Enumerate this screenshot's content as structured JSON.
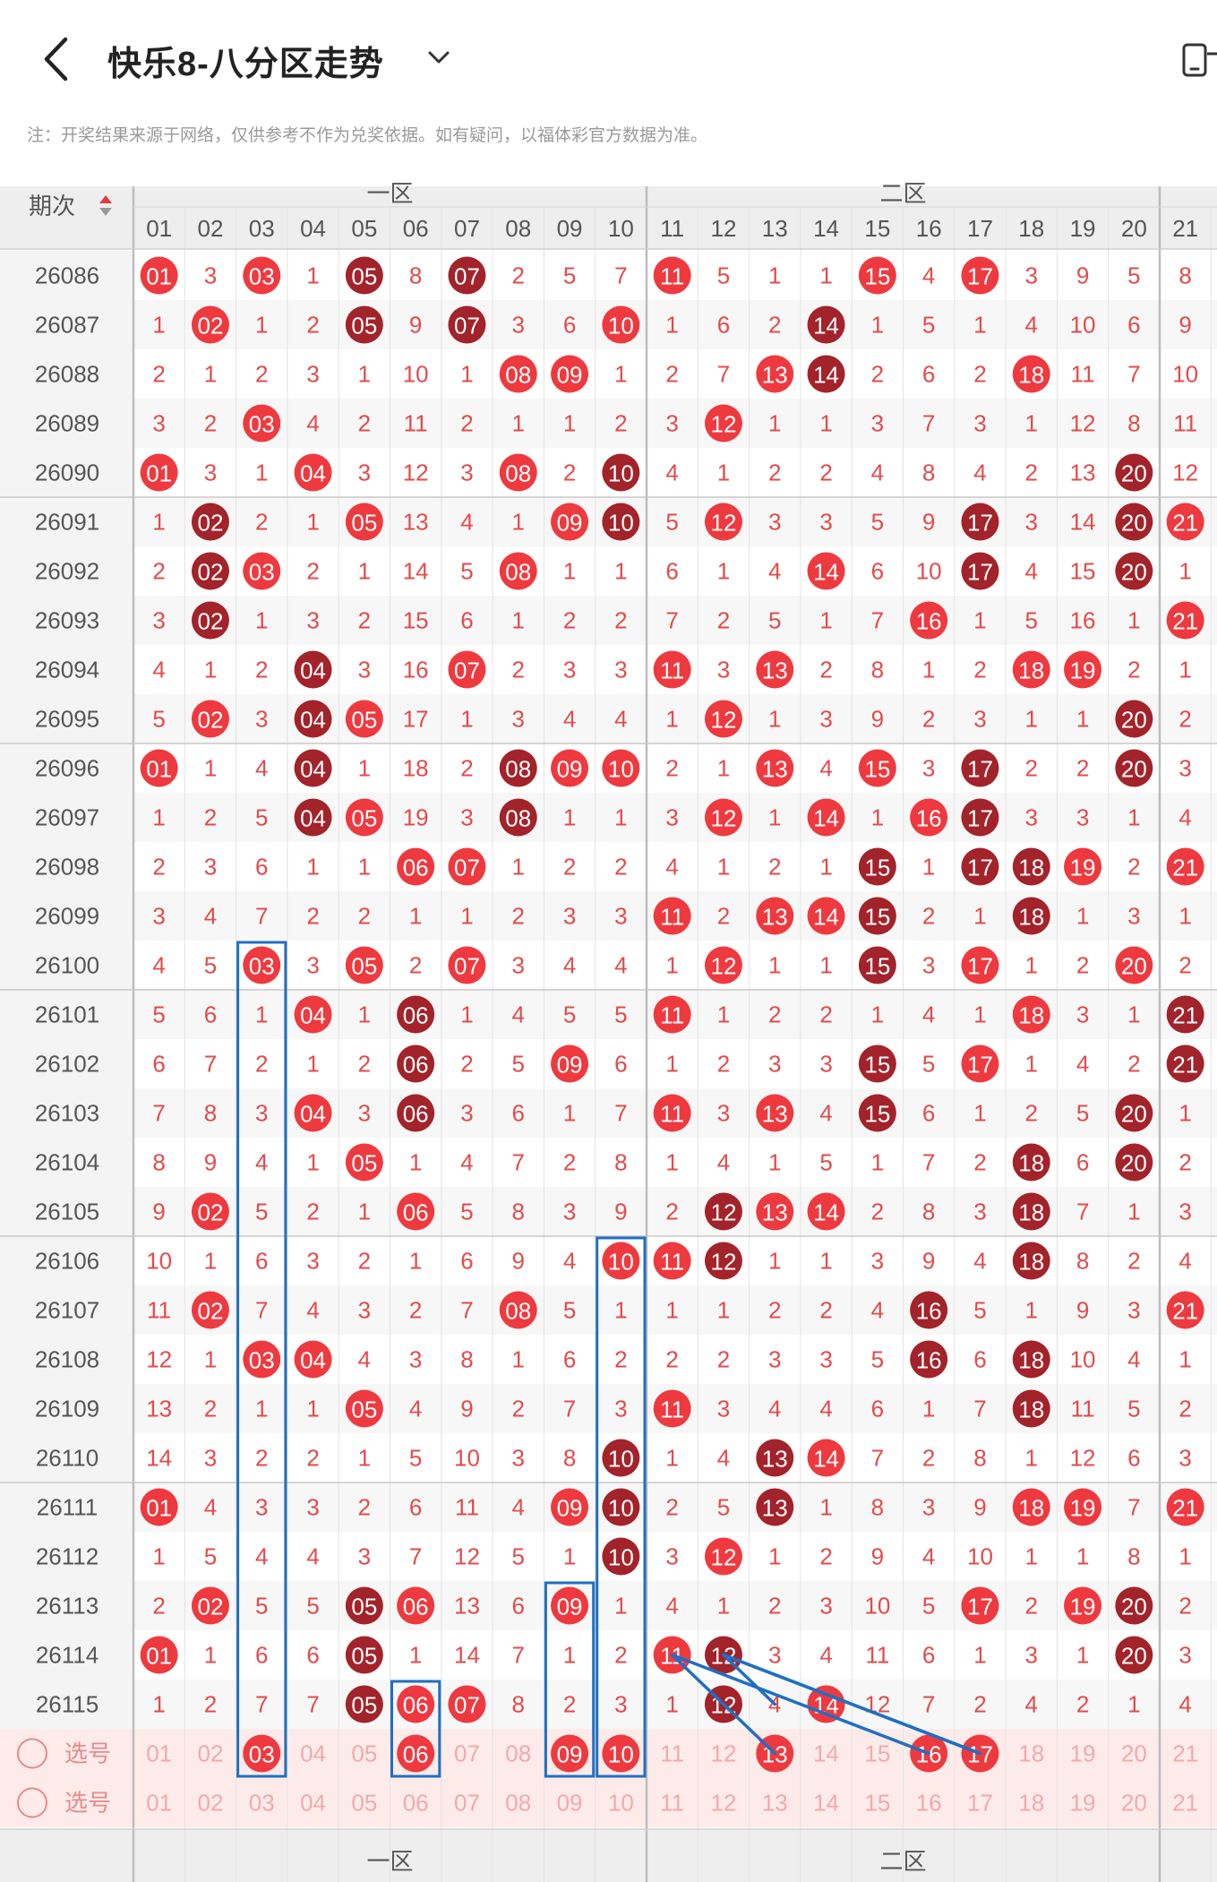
{
  "header": {
    "title": "快乐8-八分区走势",
    "back_icon": "chevron-left-icon",
    "dropdown_icon": "chevron-down-icon",
    "right_icon": "phone-icon"
  },
  "notice": "注：开奖结果来源于网络，仅供参考不作为兑奖依据。如有疑问，以福体彩官方数据为准。",
  "table": {
    "period_header": "期次",
    "zones": [
      "一区",
      "二区"
    ],
    "columns": [
      "01",
      "02",
      "03",
      "04",
      "05",
      "06",
      "07",
      "08",
      "09",
      "10",
      "11",
      "12",
      "13",
      "14",
      "15",
      "16",
      "17",
      "18",
      "19",
      "20",
      "21"
    ],
    "rows": [
      {
        "period": "26086",
        "cells": [
          "01",
          "3",
          "03",
          "1",
          "05",
          "8",
          "07",
          "2",
          "5",
          "7",
          "11",
          "5",
          "1",
          "1",
          "15",
          "4",
          "17",
          "3",
          "9",
          "5",
          "8"
        ]
      },
      {
        "period": "26087",
        "cells": [
          "1",
          "02",
          "1",
          "2",
          "05",
          "9",
          "07",
          "3",
          "6",
          "10",
          "1",
          "6",
          "2",
          "14",
          "1",
          "5",
          "1",
          "4",
          "10",
          "6",
          "9"
        ]
      },
      {
        "period": "26088",
        "cells": [
          "2",
          "1",
          "2",
          "3",
          "1",
          "10",
          "1",
          "08",
          "09",
          "1",
          "2",
          "7",
          "13",
          "14",
          "2",
          "6",
          "2",
          "18",
          "11",
          "7",
          "10"
        ]
      },
      {
        "period": "26089",
        "cells": [
          "3",
          "2",
          "03",
          "4",
          "2",
          "11",
          "2",
          "1",
          "1",
          "2",
          "3",
          "12",
          "1",
          "1",
          "3",
          "7",
          "3",
          "1",
          "12",
          "8",
          "11"
        ]
      },
      {
        "period": "26090",
        "cells": [
          "01",
          "3",
          "1",
          "04",
          "3",
          "12",
          "3",
          "08",
          "2",
          "10",
          "4",
          "1",
          "2",
          "2",
          "4",
          "8",
          "4",
          "2",
          "13",
          "20",
          "12"
        ]
      },
      {
        "period": "26091",
        "cells": [
          "1",
          "02",
          "2",
          "1",
          "05",
          "13",
          "4",
          "1",
          "09",
          "10",
          "5",
          "12",
          "3",
          "3",
          "5",
          "9",
          "17",
          "3",
          "14",
          "20",
          "21"
        ]
      },
      {
        "period": "26092",
        "cells": [
          "2",
          "02",
          "03",
          "2",
          "1",
          "14",
          "5",
          "08",
          "1",
          "1",
          "6",
          "1",
          "4",
          "14",
          "6",
          "10",
          "17",
          "4",
          "15",
          "20",
          "1"
        ]
      },
      {
        "period": "26093",
        "cells": [
          "3",
          "02",
          "1",
          "3",
          "2",
          "15",
          "6",
          "1",
          "2",
          "2",
          "7",
          "2",
          "5",
          "1",
          "7",
          "16",
          "1",
          "5",
          "16",
          "1",
          "21"
        ]
      },
      {
        "period": "26094",
        "cells": [
          "4",
          "1",
          "2",
          "04",
          "3",
          "16",
          "07",
          "2",
          "3",
          "3",
          "11",
          "3",
          "13",
          "2",
          "8",
          "1",
          "2",
          "18",
          "19",
          "2",
          "1"
        ]
      },
      {
        "period": "26095",
        "cells": [
          "5",
          "02",
          "3",
          "04",
          "05",
          "17",
          "1",
          "3",
          "4",
          "4",
          "1",
          "12",
          "1",
          "3",
          "9",
          "2",
          "3",
          "1",
          "1",
          "20",
          "2"
        ]
      },
      {
        "period": "26096",
        "cells": [
          "01",
          "1",
          "4",
          "04",
          "1",
          "18",
          "2",
          "08",
          "09",
          "10",
          "2",
          "1",
          "13",
          "4",
          "15",
          "3",
          "17",
          "2",
          "2",
          "20",
          "3"
        ]
      },
      {
        "period": "26097",
        "cells": [
          "1",
          "2",
          "5",
          "04",
          "05",
          "19",
          "3",
          "08",
          "1",
          "1",
          "3",
          "12",
          "1",
          "14",
          "1",
          "16",
          "17",
          "3",
          "3",
          "1",
          "4"
        ]
      },
      {
        "period": "26098",
        "cells": [
          "2",
          "3",
          "6",
          "1",
          "1",
          "06",
          "07",
          "1",
          "2",
          "2",
          "4",
          "1",
          "2",
          "1",
          "15",
          "1",
          "17",
          "18",
          "19",
          "2",
          "21"
        ]
      },
      {
        "period": "26099",
        "cells": [
          "3",
          "4",
          "7",
          "2",
          "2",
          "1",
          "1",
          "2",
          "3",
          "3",
          "11",
          "2",
          "13",
          "14",
          "15",
          "2",
          "1",
          "18",
          "1",
          "3",
          "1"
        ]
      },
      {
        "period": "26100",
        "cells": [
          "4",
          "5",
          "03",
          "3",
          "05",
          "2",
          "07",
          "3",
          "4",
          "4",
          "1",
          "12",
          "1",
          "1",
          "15",
          "3",
          "17",
          "1",
          "2",
          "20",
          "2"
        ]
      },
      {
        "period": "26101",
        "cells": [
          "5",
          "6",
          "1",
          "04",
          "1",
          "06",
          "1",
          "4",
          "5",
          "5",
          "11",
          "1",
          "2",
          "2",
          "1",
          "4",
          "1",
          "18",
          "3",
          "1",
          "21"
        ]
      },
      {
        "period": "26102",
        "cells": [
          "6",
          "7",
          "2",
          "1",
          "2",
          "06",
          "2",
          "5",
          "09",
          "6",
          "1",
          "2",
          "3",
          "3",
          "15",
          "5",
          "17",
          "1",
          "4",
          "2",
          "21"
        ]
      },
      {
        "period": "26103",
        "cells": [
          "7",
          "8",
          "3",
          "04",
          "3",
          "06",
          "3",
          "6",
          "1",
          "7",
          "11",
          "3",
          "13",
          "4",
          "15",
          "6",
          "1",
          "2",
          "5",
          "20",
          "1"
        ]
      },
      {
        "period": "26104",
        "cells": [
          "8",
          "9",
          "4",
          "1",
          "05",
          "1",
          "4",
          "7",
          "2",
          "8",
          "1",
          "4",
          "1",
          "5",
          "1",
          "7",
          "2",
          "18",
          "6",
          "20",
          "2"
        ]
      },
      {
        "period": "26105",
        "cells": [
          "9",
          "02",
          "5",
          "2",
          "1",
          "06",
          "5",
          "8",
          "3",
          "9",
          "2",
          "12",
          "13",
          "14",
          "2",
          "8",
          "3",
          "18",
          "7",
          "1",
          "3"
        ]
      },
      {
        "period": "26106",
        "cells": [
          "10",
          "1",
          "6",
          "3",
          "2",
          "1",
          "6",
          "9",
          "4",
          "10",
          "11",
          "12",
          "1",
          "1",
          "3",
          "9",
          "4",
          "18",
          "8",
          "2",
          "4"
        ]
      },
      {
        "period": "26107",
        "cells": [
          "11",
          "02",
          "7",
          "4",
          "3",
          "2",
          "7",
          "08",
          "5",
          "1",
          "1",
          "1",
          "2",
          "2",
          "4",
          "16",
          "5",
          "1",
          "9",
          "3",
          "21"
        ]
      },
      {
        "period": "26108",
        "cells": [
          "12",
          "1",
          "03",
          "04",
          "4",
          "3",
          "8",
          "1",
          "6",
          "2",
          "2",
          "2",
          "3",
          "3",
          "5",
          "16",
          "6",
          "18",
          "10",
          "4",
          "1"
        ]
      },
      {
        "period": "26109",
        "cells": [
          "13",
          "2",
          "1",
          "1",
          "05",
          "4",
          "9",
          "2",
          "7",
          "3",
          "11",
          "3",
          "4",
          "4",
          "6",
          "1",
          "7",
          "18",
          "11",
          "5",
          "2"
        ]
      },
      {
        "period": "26110",
        "cells": [
          "14",
          "3",
          "2",
          "2",
          "1",
          "5",
          "10",
          "3",
          "8",
          "10",
          "1",
          "4",
          "13",
          "14",
          "7",
          "2",
          "8",
          "1",
          "12",
          "6",
          "3"
        ]
      },
      {
        "period": "26111",
        "cells": [
          "01",
          "4",
          "3",
          "3",
          "2",
          "6",
          "11",
          "4",
          "09",
          "10",
          "2",
          "5",
          "13",
          "1",
          "8",
          "3",
          "9",
          "18",
          "19",
          "7",
          "21"
        ]
      },
      {
        "period": "26112",
        "cells": [
          "1",
          "5",
          "4",
          "4",
          "3",
          "7",
          "12",
          "5",
          "1",
          "10",
          "3",
          "12",
          "1",
          "2",
          "9",
          "4",
          "10",
          "1",
          "1",
          "8",
          "1"
        ]
      },
      {
        "period": "26113",
        "cells": [
          "2",
          "02",
          "5",
          "5",
          "05",
          "06",
          "13",
          "6",
          "09",
          "1",
          "4",
          "1",
          "2",
          "3",
          "10",
          "5",
          "17",
          "2",
          "19",
          "20",
          "2"
        ]
      },
      {
        "period": "26114",
        "cells": [
          "01",
          "1",
          "6",
          "6",
          "05",
          "1",
          "14",
          "7",
          "1",
          "2",
          "11",
          "12",
          "3",
          "4",
          "11",
          "6",
          "1",
          "3",
          "1",
          "20",
          "3"
        ]
      },
      {
        "period": "26115",
        "cells": [
          "1",
          "2",
          "7",
          "7",
          "05",
          "06",
          "07",
          "8",
          "2",
          "3",
          "1",
          "12",
          "4",
          "14",
          "12",
          "7",
          "2",
          "4",
          "2",
          "1",
          "4"
        ]
      }
    ],
    "select_rows": [
      {
        "label": "选号",
        "selected": [
          "03",
          "06",
          "09",
          "10",
          "13",
          "16",
          "17"
        ]
      },
      {
        "label": "选号",
        "selected": []
      }
    ]
  }
}
